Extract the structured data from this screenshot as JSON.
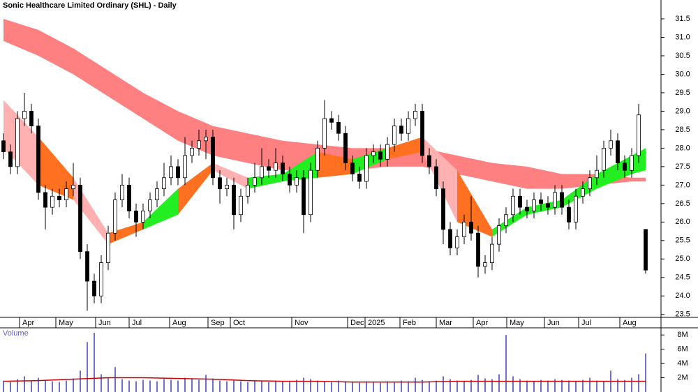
{
  "chart_data": {
    "type": "candlestick",
    "title": "Sonic Healthcare Limited Ordinary (SHL) - Daily",
    "volume_label": "Volume",
    "xticks": [
      {
        "value": 2.3,
        "label": "Apr"
      },
      {
        "value": 7.5,
        "label": "May"
      },
      {
        "value": 13.2,
        "label": "Jun"
      },
      {
        "value": 18,
        "label": "Jul"
      },
      {
        "value": 23.8,
        "label": "Aug"
      },
      {
        "value": 29.3,
        "label": "Sep"
      },
      {
        "value": 32.5,
        "label": "Oct"
      },
      {
        "value": 41.3,
        "label": "Nov"
      },
      {
        "value": 49.3,
        "label": "Dec"
      },
      {
        "value": 51.8,
        "label": "2025"
      },
      {
        "value": 56.8,
        "label": "Feb"
      },
      {
        "value": 62,
        "label": "Mar"
      },
      {
        "value": 67.3,
        "label": "Apr"
      },
      {
        "value": 72.1,
        "label": "May"
      },
      {
        "value": 77.5,
        "label": "Jun"
      },
      {
        "value": 82.4,
        "label": "Jul"
      },
      {
        "value": 88.3,
        "label": "Aug"
      }
    ],
    "ylim": [
      23.42,
      32.01
    ],
    "yticks": [
      23.5,
      {
        "value": 24,
        "label": "24.0"
      },
      24.5,
      {
        "value": 25,
        "label": "25.0"
      },
      25.5,
      {
        "value": 26,
        "label": "26.0"
      },
      26.5,
      {
        "value": 27,
        "label": "27.0"
      },
      27.5,
      {
        "value": 28,
        "label": "28.0"
      },
      28.5,
      {
        "value": 29,
        "label": "29.0"
      },
      29.5,
      {
        "value": 30,
        "label": "30.0"
      },
      30.5,
      {
        "value": 31,
        "label": "31.0"
      },
      31.5
    ],
    "ohlc": [
      [
        28.2,
        28.4,
        27.7,
        27.9
      ],
      [
        27.9,
        28.1,
        27.3,
        27.5
      ],
      [
        27.5,
        29.0,
        27.3,
        28.8
      ],
      [
        28.8,
        29.5,
        28.6,
        29.0
      ],
      [
        29.0,
        29.2,
        28.4,
        28.6
      ],
      [
        28.6,
        28.8,
        26.6,
        26.8
      ],
      [
        26.8,
        27.0,
        25.8,
        26.4
      ],
      [
        26.4,
        26.9,
        26.2,
        26.7
      ],
      [
        26.7,
        26.9,
        26.4,
        26.6
      ],
      [
        26.6,
        27.1,
        26.4,
        26.9
      ],
      [
        26.9,
        27.6,
        26.7,
        27.0
      ],
      [
        27.0,
        27.2,
        25.0,
        25.2
      ],
      [
        25.2,
        25.4,
        23.6,
        24.4
      ],
      [
        24.4,
        24.6,
        23.8,
        24.0
      ],
      [
        24.0,
        25.1,
        23.8,
        24.9
      ],
      [
        24.9,
        25.9,
        24.7,
        25.7
      ],
      [
        25.7,
        26.8,
        25.5,
        26.6
      ],
      [
        26.6,
        27.3,
        26.4,
        27.0
      ],
      [
        27.0,
        27.2,
        26.1,
        26.3
      ],
      [
        26.3,
        26.5,
        25.6,
        26.0
      ],
      [
        26.0,
        26.5,
        25.8,
        26.3
      ],
      [
        26.3,
        26.8,
        26.1,
        26.6
      ],
      [
        26.6,
        27.1,
        26.4,
        26.9
      ],
      [
        26.9,
        27.6,
        26.7,
        27.2
      ],
      [
        27.2,
        27.8,
        27.0,
        27.5
      ],
      [
        27.5,
        27.7,
        27.0,
        27.2
      ],
      [
        27.2,
        28.3,
        27.0,
        27.8
      ],
      [
        27.8,
        28.2,
        27.6,
        28.0
      ],
      [
        28.0,
        28.5,
        27.8,
        28.2
      ],
      [
        28.2,
        28.5,
        27.7,
        28.3
      ],
      [
        28.3,
        28.5,
        27.0,
        27.2
      ],
      [
        27.2,
        27.4,
        26.5,
        26.9
      ],
      [
        26.9,
        27.2,
        26.7,
        27.0
      ],
      [
        27.0,
        27.2,
        25.8,
        26.2
      ],
      [
        26.2,
        26.9,
        26.0,
        26.7
      ],
      [
        26.7,
        27.2,
        26.5,
        27.0
      ],
      [
        27.0,
        27.6,
        26.8,
        27.2
      ],
      [
        27.2,
        28.0,
        27.0,
        27.5
      ],
      [
        27.5,
        27.7,
        27.2,
        27.4
      ],
      [
        27.4,
        28.0,
        27.2,
        27.6
      ],
      [
        27.6,
        27.8,
        27.1,
        27.3
      ],
      [
        27.3,
        27.5,
        26.8,
        27.0
      ],
      [
        27.0,
        27.4,
        26.8,
        27.2
      ],
      [
        27.2,
        27.4,
        25.7,
        26.2
      ],
      [
        26.2,
        27.6,
        26.0,
        27.4
      ],
      [
        27.4,
        28.2,
        27.2,
        28.0
      ],
      [
        28.0,
        29.3,
        27.8,
        28.8
      ],
      [
        28.8,
        29.0,
        28.5,
        28.7
      ],
      [
        28.7,
        28.9,
        28.2,
        28.4
      ],
      [
        28.4,
        28.6,
        27.4,
        27.6
      ],
      [
        27.6,
        27.8,
        27.1,
        27.3
      ],
      [
        27.3,
        27.5,
        26.9,
        27.1
      ],
      [
        27.1,
        28.0,
        26.9,
        27.8
      ],
      [
        27.8,
        28.1,
        27.6,
        27.9
      ],
      [
        27.9,
        28.1,
        27.5,
        27.7
      ],
      [
        27.7,
        28.3,
        27.5,
        28.1
      ],
      [
        28.1,
        28.8,
        27.9,
        28.6
      ],
      [
        28.6,
        28.8,
        28.2,
        28.4
      ],
      [
        28.4,
        29.0,
        28.2,
        28.8
      ],
      [
        28.8,
        29.2,
        28.6,
        29.0
      ],
      [
        29.0,
        29.2,
        27.6,
        27.8
      ],
      [
        27.8,
        28.0,
        27.3,
        27.5
      ],
      [
        27.5,
        27.7,
        26.7,
        26.9
      ],
      [
        26.9,
        27.1,
        25.4,
        25.8
      ],
      [
        25.8,
        26.0,
        25.1,
        25.3
      ],
      [
        25.3,
        25.8,
        25.1,
        25.6
      ],
      [
        25.6,
        26.2,
        25.4,
        26.0
      ],
      [
        26.0,
        26.7,
        25.5,
        25.7
      ],
      [
        25.7,
        25.9,
        24.5,
        24.8
      ],
      [
        24.8,
        25.1,
        24.6,
        24.9
      ],
      [
        24.9,
        25.6,
        24.7,
        25.4
      ],
      [
        25.4,
        26.1,
        25.2,
        25.9
      ],
      [
        25.9,
        26.4,
        25.7,
        26.2
      ],
      [
        26.2,
        26.9,
        26.0,
        26.7
      ],
      [
        26.7,
        26.9,
        26.2,
        26.4
      ],
      [
        26.4,
        26.6,
        26.1,
        26.3
      ],
      [
        26.3,
        26.8,
        26.1,
        26.6
      ],
      [
        26.6,
        26.8,
        26.3,
        26.5
      ],
      [
        26.5,
        26.7,
        26.2,
        26.4
      ],
      [
        26.4,
        27.0,
        26.2,
        26.8
      ],
      [
        26.8,
        27.0,
        26.2,
        26.4
      ],
      [
        26.4,
        26.6,
        25.8,
        26.0
      ],
      [
        26.0,
        26.9,
        25.8,
        26.7
      ],
      [
        26.7,
        27.1,
        26.5,
        26.9
      ],
      [
        26.9,
        27.4,
        26.7,
        27.2
      ],
      [
        27.2,
        27.8,
        27.0,
        27.4
      ],
      [
        27.4,
        28.2,
        27.2,
        28.0
      ],
      [
        28.0,
        28.5,
        27.8,
        28.2
      ],
      [
        28.2,
        28.4,
        27.4,
        27.6
      ],
      [
        27.6,
        27.8,
        27.2,
        27.4
      ],
      [
        27.4,
        28.0,
        27.2,
        27.8
      ],
      [
        27.8,
        29.2,
        27.6,
        28.9
      ],
      [
        25.8,
        25.8,
        24.6,
        24.7
      ]
    ],
    "band_x": [
      0,
      5,
      10,
      15,
      20,
      25,
      30,
      35,
      40,
      45,
      50,
      55,
      60,
      65,
      70,
      75,
      80,
      85,
      90,
      92
    ],
    "long_band": {
      "color": "#ff8080",
      "upper": [
        31.5,
        31.2,
        30.7,
        30.1,
        29.5,
        29.0,
        28.6,
        28.4,
        28.2,
        28.1,
        28.0,
        28.0,
        28.0,
        27.8,
        27.6,
        27.5,
        27.3,
        27.3,
        27.2,
        27.2
      ],
      "lower": [
        30.9,
        30.5,
        30.0,
        29.4,
        28.8,
        28.2,
        27.8,
        27.6,
        27.4,
        27.4,
        27.4,
        27.5,
        27.5,
        27.3,
        27.1,
        26.9,
        26.9,
        27.0,
        27.1,
        27.1
      ]
    },
    "short_band": {
      "upper": [
        29.3,
        28.3,
        27.2,
        25.7,
        26.0,
        26.9,
        27.6,
        27.2,
        27.3,
        27.9,
        27.7,
        28.0,
        28.3,
        27.4,
        25.8,
        26.4,
        26.6,
        27.3,
        27.8,
        28.0
      ],
      "lower": [
        28.0,
        27.0,
        26.6,
        25.4,
        25.8,
        26.2,
        27.4,
        26.9,
        27.1,
        27.2,
        27.3,
        27.7,
        27.9,
        26.0,
        25.6,
        26.2,
        26.4,
        26.9,
        27.3,
        27.4
      ],
      "colors": [
        "#ffb0b0",
        "#ffb0b0",
        "#ff7020",
        "#ffb0b0",
        "#ff7020",
        "#22ee22",
        "#ff7020",
        "#ffb0b0",
        "#22ee22",
        "#22ee22",
        "#ff7020",
        "#22ee22",
        "#ff7020",
        "#ffb0b0",
        "#ff7020",
        "#22ee22",
        "#22ee22",
        "#22ee22",
        "#22ee22",
        "#22ee22"
      ]
    },
    "volume": [
      1.6,
      1.4,
      1.8,
      2.2,
      1.5,
      2.0,
      1.7,
      1.5,
      1.4,
      1.6,
      1.9,
      3.0,
      7.0,
      8.3,
      2.5,
      2.0,
      3.5,
      1.8,
      1.6,
      1.5,
      1.7,
      1.6,
      1.5,
      1.8,
      1.7,
      1.6,
      2.0,
      1.8,
      1.7,
      2.4,
      1.9,
      1.6,
      1.5,
      1.7,
      1.5,
      1.4,
      1.6,
      1.5,
      1.4,
      1.6,
      1.5,
      1.4,
      1.7,
      2.0,
      1.8,
      1.6,
      1.5,
      1.4,
      1.6,
      1.5,
      1.4,
      1.3,
      1.5,
      1.4,
      1.3,
      1.5,
      1.4,
      1.6,
      1.5,
      2.0,
      1.7,
      1.5,
      1.6,
      2.2,
      1.8,
      1.6,
      1.5,
      1.7,
      2.4,
      1.9,
      1.8,
      2.5,
      8.0,
      2.2,
      1.8,
      1.6,
      1.5,
      1.7,
      1.6,
      1.8,
      1.7,
      1.6,
      1.5,
      1.7,
      2.0,
      1.6,
      1.5,
      3.0,
      1.8,
      1.7,
      2.0,
      2.5,
      5.4
    ],
    "volume_color": "#7070d0",
    "volume_ma": {
      "color": "#cc0000",
      "values": [
        1.5,
        1.6,
        1.8,
        2.0,
        2.0,
        1.9,
        1.8,
        1.6,
        1.5,
        1.5,
        1.4,
        1.4,
        1.4,
        1.5,
        1.5,
        1.5,
        1.5,
        1.5,
        1.5,
        1.5
      ]
    },
    "vlim": [
      0,
      9
    ],
    "vticks": [
      {
        "value": 2,
        "label": "2M"
      },
      {
        "value": 4,
        "label": "4M"
      },
      {
        "value": 6,
        "label": "6M"
      },
      {
        "value": 8,
        "label": "8M"
      }
    ]
  }
}
